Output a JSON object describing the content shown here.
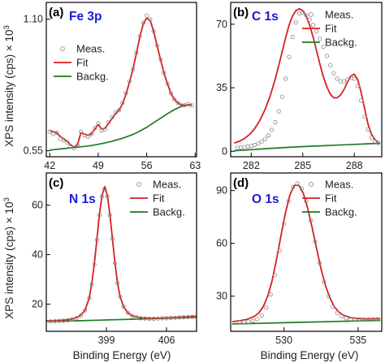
{
  "figure": {
    "ylabel": "XPS intensity (cps) × 10",
    "ylabel_exp": "3",
    "xlabel": "Binding Energy (eV)",
    "title_color": "#1a1ad6",
    "colors": {
      "meas": "#8a8a8a",
      "fit": "#d61f1f",
      "backg": "#1f7a1f"
    }
  },
  "chart_data": [
    {
      "type": "line",
      "letter": "(a)",
      "title": "Fe 3p",
      "xlim": [
        41.5,
        63.2
      ],
      "ylim": [
        0.525,
        1.17
      ],
      "xticks": [
        42,
        49,
        56,
        63
      ],
      "yticks": [
        0.55,
        1.1
      ],
      "ytick_labels": [
        "0.55",
        "1.10"
      ],
      "legend": [
        "Meas.",
        "Fit",
        "Backg."
      ],
      "legend_position": "top-left",
      "series": [
        {
          "name": "Meas.",
          "x": [
            42.0,
            42.5,
            43.0,
            43.5,
            44.0,
            44.5,
            45.0,
            45.5,
            46.0,
            46.5,
            47.0,
            47.5,
            48.0,
            48.5,
            49.0,
            49.5,
            50.0,
            50.5,
            51.0,
            51.5,
            52.0,
            52.5,
            53.0,
            53.5,
            54.0,
            54.5,
            55.0,
            55.5,
            56.0,
            56.5,
            57.0,
            57.5,
            58.0,
            58.5,
            59.0,
            59.5,
            60.0,
            60.5,
            61.0,
            61.5,
            62.0,
            62.5
          ],
          "y": [
            0.63,
            0.62,
            0.625,
            0.6,
            0.595,
            0.585,
            0.57,
            0.56,
            0.575,
            0.63,
            0.615,
            0.61,
            0.62,
            0.645,
            0.665,
            0.635,
            0.64,
            0.67,
            0.69,
            0.71,
            0.72,
            0.75,
            0.79,
            0.84,
            0.89,
            0.96,
            1.03,
            1.085,
            1.115,
            1.1,
            1.05,
            0.99,
            0.93,
            0.875,
            0.83,
            0.79,
            0.765,
            0.75,
            0.74,
            0.74,
            0.745,
            0.74
          ]
        },
        {
          "name": "Fit",
          "x": [
            42.0,
            42.5,
            43.0,
            43.5,
            44.0,
            44.5,
            45.0,
            45.5,
            46.0,
            46.5,
            47.0,
            47.5,
            48.0,
            48.5,
            49.0,
            49.5,
            50.0,
            50.5,
            51.0,
            51.5,
            52.0,
            52.5,
            53.0,
            53.5,
            54.0,
            54.5,
            55.0,
            55.5,
            56.0,
            56.5,
            57.0,
            57.5,
            58.0,
            58.5,
            59.0,
            59.5,
            60.0,
            60.5,
            61.0,
            61.5,
            62.0,
            62.5
          ],
          "y": [
            0.635,
            0.63,
            0.625,
            0.61,
            0.6,
            0.59,
            0.575,
            0.565,
            0.575,
            0.625,
            0.62,
            0.615,
            0.62,
            0.64,
            0.66,
            0.64,
            0.645,
            0.665,
            0.685,
            0.705,
            0.72,
            0.745,
            0.785,
            0.835,
            0.89,
            0.955,
            1.025,
            1.08,
            1.105,
            1.095,
            1.05,
            0.99,
            0.93,
            0.875,
            0.83,
            0.79,
            0.765,
            0.75,
            0.742,
            0.74,
            0.742,
            0.74
          ]
        },
        {
          "name": "Backg.",
          "x": [
            42.0,
            43.0,
            44.0,
            45.0,
            46.0,
            47.0,
            48.0,
            49.0,
            50.0,
            51.0,
            52.0,
            53.0,
            54.0,
            55.0,
            56.0,
            57.0,
            58.0,
            59.0,
            60.0,
            61.0,
            62.0,
            62.5
          ],
          "y": [
            0.553,
            0.556,
            0.559,
            0.562,
            0.565,
            0.568,
            0.572,
            0.577,
            0.583,
            0.59,
            0.598,
            0.607,
            0.618,
            0.632,
            0.648,
            0.667,
            0.686,
            0.705,
            0.722,
            0.735,
            0.742,
            0.743
          ]
        }
      ]
    },
    {
      "type": "line",
      "letter": "(b)",
      "title": "C 1s",
      "xlim": [
        280.8,
        289.6
      ],
      "ylim": [
        -3,
        82
      ],
      "xticks": [
        282,
        285,
        288
      ],
      "yticks": [
        0,
        35,
        70
      ],
      "ytick_labels": [
        "0",
        "35",
        "70"
      ],
      "legend": [
        "Meas.",
        "Fit",
        "Backg."
      ],
      "legend_position": "top-right",
      "series": [
        {
          "name": "Meas.",
          "x": [
            281.2,
            281.4,
            281.6,
            281.8,
            282.0,
            282.2,
            282.4,
            282.6,
            282.8,
            283.0,
            283.2,
            283.4,
            283.6,
            283.8,
            284.0,
            284.2,
            284.4,
            284.6,
            284.8,
            285.0,
            285.2,
            285.4,
            285.6,
            285.8,
            286.0,
            286.2,
            286.4,
            286.6,
            286.8,
            287.0,
            287.2,
            287.4,
            287.6,
            287.8,
            288.0,
            288.2,
            288.4,
            288.6,
            288.8,
            289.0,
            289.2,
            289.4
          ],
          "y": [
            2.0,
            2.1,
            2.3,
            2.6,
            3.0,
            3.5,
            4.3,
            5.3,
            6.8,
            8.8,
            11.8,
            16.0,
            22.0,
            30.0,
            40.0,
            52.0,
            63.0,
            71.0,
            76.0,
            76.5,
            75.0,
            72.5,
            69.5,
            66.0,
            62.0,
            57.5,
            52.5,
            47.5,
            43.0,
            40.0,
            38.5,
            38.5,
            39.5,
            40.5,
            40.0,
            36.0,
            28.0,
            19.0,
            12.0,
            7.5,
            5.5,
            4.5
          ]
        },
        {
          "name": "Fit",
          "x": [
            281.0,
            281.3,
            281.6,
            281.9,
            282.2,
            282.5,
            282.8,
            283.1,
            283.4,
            283.7,
            284.0,
            284.2,
            284.4,
            284.6,
            284.8,
            285.0,
            285.2,
            285.4,
            285.6,
            285.8,
            286.0,
            286.2,
            286.4,
            286.6,
            286.8,
            287.0,
            287.2,
            287.4,
            287.6,
            287.8,
            288.0,
            288.2,
            288.4,
            288.6,
            288.8,
            289.0,
            289.2,
            289.4
          ],
          "y": [
            4.5,
            5.5,
            7.0,
            9.2,
            12.5,
            17.0,
            23.0,
            30.5,
            40.0,
            51.0,
            62.5,
            69.5,
            74.5,
            77.5,
            78.5,
            77.5,
            74.5,
            69.5,
            63.0,
            55.5,
            48.0,
            41.0,
            35.5,
            31.5,
            29.5,
            29.5,
            31.0,
            34.0,
            38.0,
            41.5,
            42.5,
            39.5,
            32.5,
            23.5,
            15.0,
            9.5,
            6.5,
            5.0
          ]
        },
        {
          "name": "Backg.",
          "x": [
            281.0,
            282.0,
            283.0,
            284.0,
            285.0,
            286.0,
            287.0,
            288.0,
            289.0,
            289.5
          ],
          "y": [
            0.3,
            0.9,
            1.5,
            2.1,
            2.6,
            3.0,
            3.4,
            3.8,
            4.2,
            4.4
          ]
        }
      ]
    },
    {
      "type": "line",
      "letter": "(c)",
      "title": "N 1s",
      "xlim": [
        392.0,
        409.5
      ],
      "ylim": [
        9,
        73
      ],
      "xticks": [
        399,
        406
      ],
      "yticks": [
        20,
        40,
        60
      ],
      "ytick_labels": [
        "20",
        "40",
        "60"
      ],
      "legend": [
        "Meas.",
        "Fit",
        "Backg."
      ],
      "legend_position": "top-right",
      "series": [
        {
          "name": "Meas.",
          "x": [
            392.5,
            393.0,
            393.5,
            394.0,
            394.5,
            395.0,
            395.5,
            396.0,
            396.5,
            397.0,
            397.3,
            397.6,
            397.9,
            398.2,
            398.5,
            398.8,
            399.1,
            399.4,
            399.7,
            400.0,
            400.3,
            400.6,
            401.0,
            401.5,
            402.0,
            402.5,
            403.0,
            403.5,
            404.0,
            404.5,
            405.0,
            405.5,
            406.0,
            406.5,
            407.0,
            407.5,
            408.0,
            408.5,
            409.0
          ],
          "y": [
            13.0,
            13.1,
            13.2,
            13.3,
            13.5,
            13.8,
            14.3,
            15.3,
            17.5,
            22.5,
            28.0,
            36.0,
            46.0,
            56.0,
            63.5,
            66.5,
            63.5,
            56.0,
            46.5,
            36.5,
            28.5,
            23.0,
            19.0,
            16.5,
            15.2,
            14.6,
            14.3,
            14.2,
            14.1,
            14.1,
            14.2,
            14.3,
            14.3,
            14.4,
            14.5,
            14.6,
            14.7,
            14.8,
            14.9
          ]
        },
        {
          "name": "Fit",
          "x": [
            392.0,
            393.0,
            394.0,
            395.0,
            395.5,
            396.0,
            396.5,
            397.0,
            397.3,
            397.6,
            397.9,
            398.2,
            398.5,
            398.8,
            399.1,
            399.4,
            399.7,
            400.0,
            400.3,
            400.6,
            401.0,
            401.5,
            402.0,
            402.5,
            403.0,
            404.0,
            405.0,
            406.0,
            407.0,
            408.0,
            409.0,
            409.5
          ],
          "y": [
            13.2,
            13.3,
            13.5,
            14.0,
            14.5,
            15.5,
            17.5,
            22.5,
            28.5,
            36.5,
            46.5,
            56.5,
            64.0,
            67.5,
            64.0,
            56.5,
            46.5,
            36.5,
            28.5,
            23.0,
            19.0,
            16.5,
            15.3,
            14.8,
            14.5,
            14.3,
            14.3,
            14.4,
            14.6,
            14.8,
            15.0,
            15.1
          ]
        },
        {
          "name": "Backg.",
          "x": [
            392.0,
            394.0,
            396.0,
            398.0,
            400.0,
            402.0,
            404.0,
            406.0,
            408.0,
            409.5
          ],
          "y": [
            13.0,
            13.1,
            13.3,
            13.5,
            13.7,
            13.9,
            14.1,
            14.3,
            14.5,
            14.7
          ]
        }
      ]
    },
    {
      "type": "line",
      "letter": "(d)",
      "title": "O 1s",
      "xlim": [
        526.4,
        536.6
      ],
      "ylim": [
        10,
        100
      ],
      "xticks": [
        530,
        535
      ],
      "yticks": [
        30,
        60,
        90
      ],
      "ytick_labels": [
        "30",
        "60",
        "90"
      ],
      "legend": [
        "Meas.",
        "Fit",
        "Backg."
      ],
      "legend_position": "top-right",
      "series": [
        {
          "name": "Meas.",
          "x": [
            527.0,
            527.3,
            527.6,
            527.9,
            528.2,
            528.5,
            528.8,
            529.1,
            529.4,
            529.7,
            530.0,
            530.3,
            530.6,
            530.9,
            531.2,
            531.5,
            531.8,
            532.1,
            532.4,
            532.7,
            533.0,
            533.3,
            533.6,
            533.9,
            534.2,
            534.5,
            534.8,
            535.1,
            535.4,
            535.7,
            536.0,
            536.3
          ],
          "y": [
            15.0,
            15.2,
            15.5,
            16.0,
            17.0,
            19.0,
            23.5,
            31.0,
            42.0,
            56.0,
            71.0,
            84.0,
            92.0,
            94.0,
            91.0,
            84.0,
            73.0,
            61.0,
            49.0,
            38.0,
            30.0,
            24.0,
            20.5,
            18.5,
            17.5,
            17.0,
            16.8,
            16.7,
            16.7,
            16.8,
            16.9,
            17.0
          ]
        },
        {
          "name": "Fit",
          "x": [
            526.5,
            527.0,
            527.5,
            528.0,
            528.3,
            528.6,
            528.9,
            529.2,
            529.5,
            529.8,
            530.1,
            530.4,
            530.7,
            531.0,
            531.3,
            531.6,
            531.9,
            532.2,
            532.5,
            532.8,
            533.1,
            533.4,
            533.7,
            534.0,
            534.5,
            535.0,
            535.5,
            536.0,
            536.5
          ],
          "y": [
            15.5,
            16.0,
            16.8,
            18.5,
            20.5,
            24.0,
            30.0,
            39.0,
            51.0,
            64.5,
            77.5,
            87.5,
            93.0,
            93.0,
            88.5,
            80.0,
            69.0,
            57.0,
            45.5,
            36.0,
            29.0,
            24.0,
            21.0,
            19.2,
            17.8,
            17.3,
            17.1,
            17.1,
            17.2
          ]
        },
        {
          "name": "Backg.",
          "x": [
            526.5,
            528.0,
            529.5,
            531.0,
            532.5,
            534.0,
            535.5,
            536.5
          ],
          "y": [
            14.2,
            14.5,
            14.8,
            15.1,
            15.4,
            15.7,
            16.0,
            16.2
          ]
        }
      ]
    }
  ]
}
